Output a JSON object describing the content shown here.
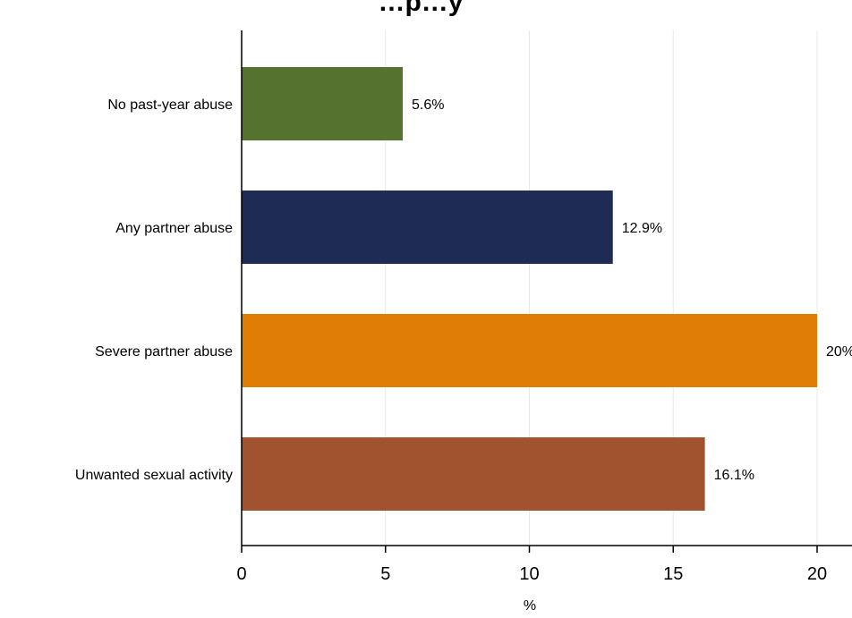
{
  "chart_data": {
    "type": "bar",
    "orientation": "horizontal",
    "title": "…p…y",
    "categories": [
      "No past-year abuse",
      "Any partner abuse",
      "Severe partner abuse",
      "Unwanted sexual activity"
    ],
    "values": [
      5.6,
      12.9,
      20,
      16.1
    ],
    "value_labels": [
      "5.6%",
      "12.9%",
      "20%",
      "16.1%"
    ],
    "colors": [
      "#56722f",
      "#1e2b55",
      "#e07d05",
      "#a0532e"
    ],
    "xlabel": "%",
    "ylabel": "",
    "xlim": [
      0,
      20
    ],
    "xticks": [
      0,
      5,
      10,
      15,
      20
    ],
    "xtick_labels": [
      "0",
      "5",
      "10",
      "15",
      "20"
    ],
    "grid": true,
    "legend": "none"
  }
}
